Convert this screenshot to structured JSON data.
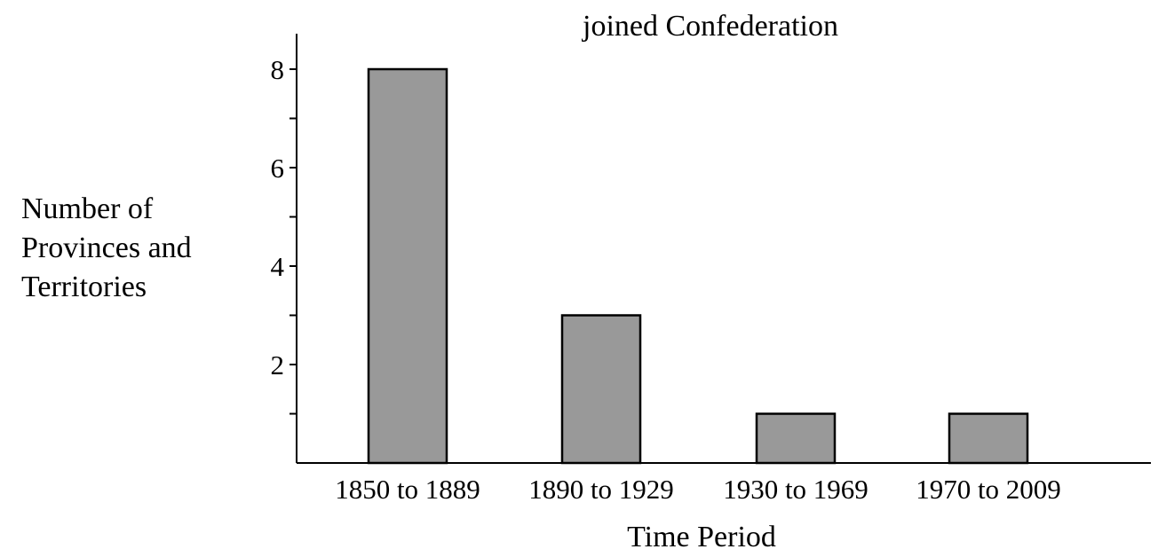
{
  "chart_data": {
    "type": "bar",
    "title": "joined Confederation",
    "xlabel": "Time Period",
    "ylabel": "Number of\nProvinces and\nTerritories",
    "categories": [
      "1850 to 1889",
      "1890 to 1929",
      "1930 to 1969",
      "1970 to 2009"
    ],
    "values": [
      8,
      3,
      1,
      1
    ],
    "ylim": [
      0,
      8.8
    ],
    "yticks": [
      2,
      4,
      6,
      8
    ],
    "yminor_ticks": [
      1,
      3,
      5,
      7
    ],
    "grid": false,
    "bar_color": "#999999",
    "bar_edge_color": "#000000"
  }
}
